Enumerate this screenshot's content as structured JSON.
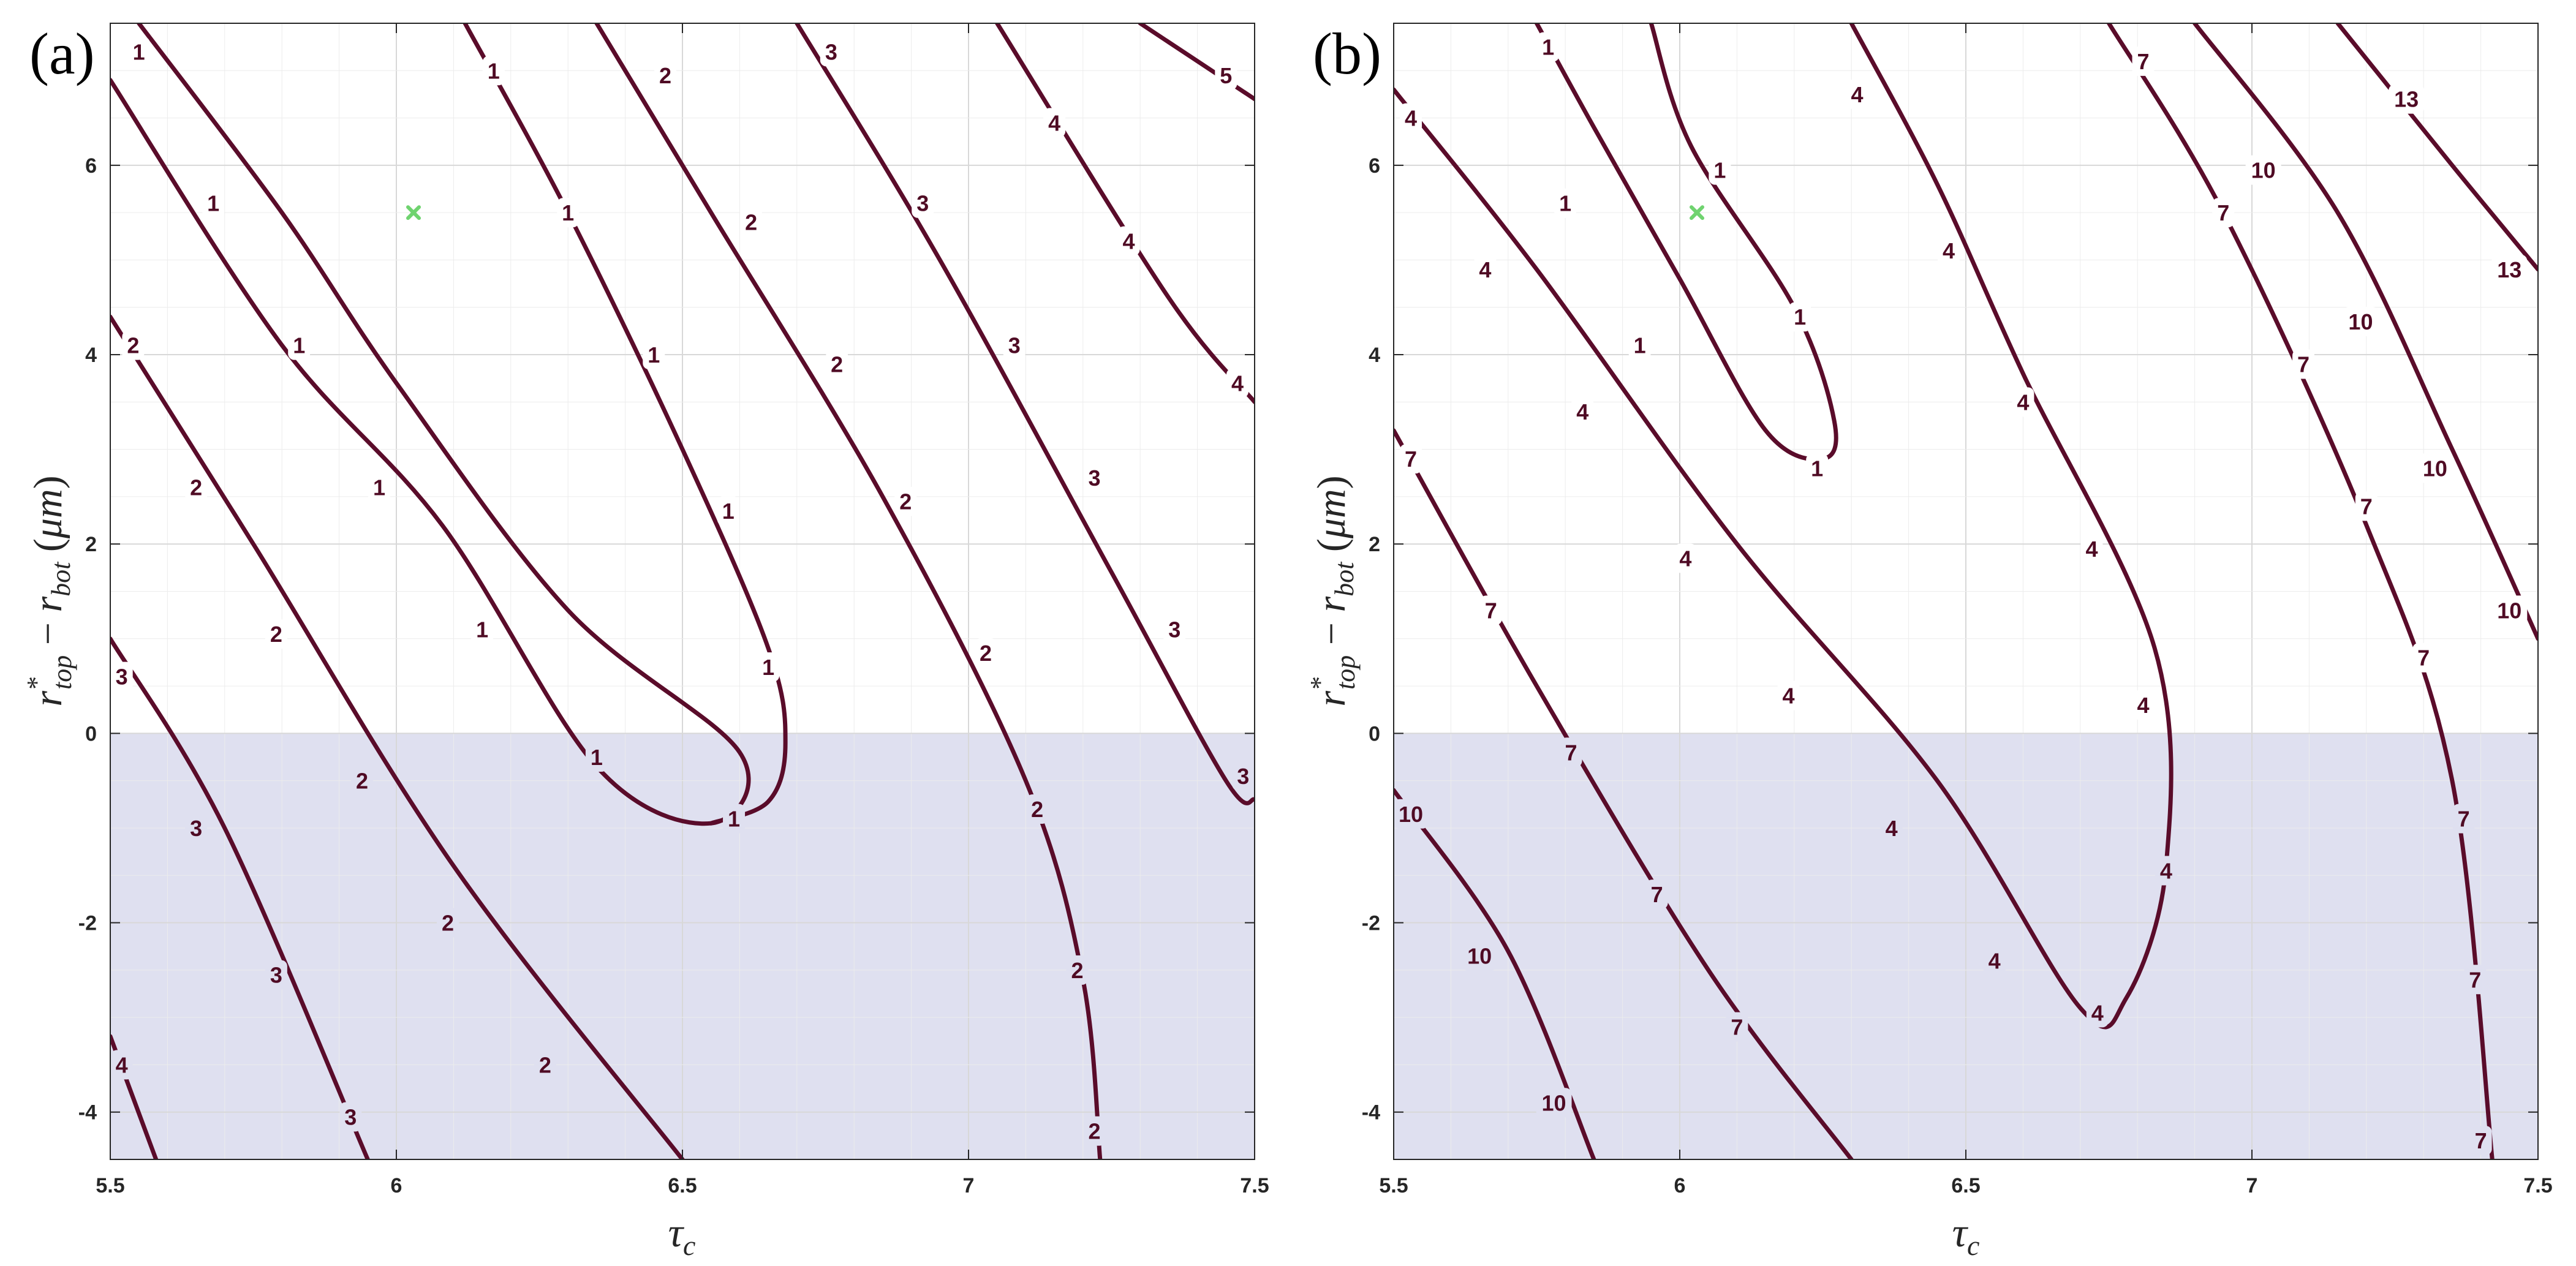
{
  "colors": {
    "contour": "#5a0c2a",
    "shaded_region": "#dfe0f0",
    "marker": "#6fd36f",
    "grid": "#ececec",
    "axis": "#262626"
  },
  "chart_data": [
    {
      "type": "contour",
      "panel_label": "(a)",
      "xlabel": "τ_c",
      "ylabel": "r*_top − r_bot (μm)",
      "xlim": [
        5.5,
        7.5
      ],
      "ylim": [
        -4.5,
        7.5
      ],
      "x_ticks": [
        5.5,
        6,
        6.5,
        7,
        7.5
      ],
      "x_tick_labels": [
        "5.5",
        "6",
        "6.5",
        "7",
        "7.5"
      ],
      "y_ticks": [
        -4,
        -2,
        0,
        2,
        4,
        6
      ],
      "y_tick_labels": [
        "-4",
        "-2",
        "0",
        "2",
        "4",
        "6"
      ],
      "grid": true,
      "shaded_region": {
        "y_from": -4.5,
        "y_to": 0
      },
      "marker": {
        "x": 6.03,
        "y": 5.5,
        "symbol": "x"
      },
      "contours": [
        {
          "level": 1,
          "points": [
            [
              5.55,
              7.5
            ],
            [
              5.8,
              5.5
            ],
            [
              6.0,
              3.7
            ],
            [
              6.3,
              1.3
            ],
            [
              6.6,
              -0.2
            ],
            [
              6.55,
              -0.95
            ],
            [
              6.35,
              -0.35
            ],
            [
              6.08,
              2.2
            ],
            [
              5.8,
              4.1
            ],
            [
              5.5,
              6.9
            ]
          ]
        },
        {
          "level": 1,
          "points": [
            [
              6.12,
              7.5
            ],
            [
              6.3,
              5.5
            ],
            [
              6.5,
              3.0
            ],
            [
              6.65,
              0.9
            ],
            [
              6.68,
              -0.1
            ],
            [
              6.65,
              -0.72
            ],
            [
              6.55,
              -0.95
            ]
          ]
        },
        {
          "level": 2,
          "points": [
            [
              5.5,
              4.4
            ],
            [
              5.75,
              2.0
            ],
            [
              6.1,
              -1.4
            ],
            [
              6.5,
              -4.5
            ]
          ]
        },
        {
          "level": 2,
          "points": [
            [
              6.35,
              7.5
            ],
            [
              6.55,
              5.5
            ],
            [
              6.85,
              2.5
            ],
            [
              7.1,
              -0.5
            ],
            [
              7.2,
              -2.6
            ],
            [
              7.23,
              -4.5
            ]
          ]
        },
        {
          "level": 3,
          "points": [
            [
              5.5,
              1.0
            ],
            [
              5.7,
              -1.0
            ],
            [
              5.95,
              -4.5
            ]
          ]
        },
        {
          "level": 3,
          "points": [
            [
              6.7,
              7.5
            ],
            [
              6.95,
              5.0
            ],
            [
              7.25,
              1.7
            ],
            [
              7.45,
              -0.5
            ],
            [
              7.5,
              -0.7
            ]
          ]
        },
        {
          "level": 4,
          "points": [
            [
              5.5,
              -3.2
            ],
            [
              5.58,
              -4.5
            ]
          ]
        },
        {
          "level": 4,
          "points": [
            [
              7.05,
              7.5
            ],
            [
              7.35,
              4.6
            ],
            [
              7.5,
              3.5
            ]
          ]
        },
        {
          "level": 5,
          "points": [
            [
              7.3,
              7.5
            ],
            [
              7.5,
              6.7
            ]
          ]
        }
      ],
      "contour_labels": [
        {
          "text": "1",
          "x": 5.55,
          "y": 7.2
        },
        {
          "text": "1",
          "x": 5.68,
          "y": 5.6
        },
        {
          "text": "1",
          "x": 5.83,
          "y": 4.1
        },
        {
          "text": "1",
          "x": 5.97,
          "y": 2.6
        },
        {
          "text": "1",
          "x": 6.15,
          "y": 1.1
        },
        {
          "text": "1",
          "x": 6.35,
          "y": -0.25
        },
        {
          "text": "1",
          "x": 6.17,
          "y": 7.0
        },
        {
          "text": "1",
          "x": 6.3,
          "y": 5.5
        },
        {
          "text": "1",
          "x": 6.45,
          "y": 4.0
        },
        {
          "text": "1",
          "x": 6.58,
          "y": 2.35
        },
        {
          "text": "1",
          "x": 6.65,
          "y": 0.7
        },
        {
          "text": "1",
          "x": 6.59,
          "y": -0.9
        },
        {
          "text": "2",
          "x": 5.54,
          "y": 4.1
        },
        {
          "text": "2",
          "x": 5.65,
          "y": 2.6
        },
        {
          "text": "2",
          "x": 5.79,
          "y": 1.05
        },
        {
          "text": "2",
          "x": 5.94,
          "y": -0.5
        },
        {
          "text": "2",
          "x": 6.09,
          "y": -2.0
        },
        {
          "text": "2",
          "x": 6.26,
          "y": -3.5
        },
        {
          "text": "2",
          "x": 6.47,
          "y": 6.95
        },
        {
          "text": "2",
          "x": 6.62,
          "y": 5.4
        },
        {
          "text": "2",
          "x": 6.77,
          "y": 3.9
        },
        {
          "text": "2",
          "x": 6.89,
          "y": 2.45
        },
        {
          "text": "2",
          "x": 7.03,
          "y": 0.85
        },
        {
          "text": "2",
          "x": 7.12,
          "y": -0.8
        },
        {
          "text": "2",
          "x": 7.19,
          "y": -2.5
        },
        {
          "text": "2",
          "x": 7.22,
          "y": -4.2
        },
        {
          "text": "3",
          "x": 5.52,
          "y": 0.6
        },
        {
          "text": "3",
          "x": 5.65,
          "y": -1.0
        },
        {
          "text": "3",
          "x": 5.79,
          "y": -2.55
        },
        {
          "text": "3",
          "x": 5.92,
          "y": -4.05
        },
        {
          "text": "3",
          "x": 6.76,
          "y": 7.2
        },
        {
          "text": "3",
          "x": 6.92,
          "y": 5.6
        },
        {
          "text": "3",
          "x": 7.08,
          "y": 4.1
        },
        {
          "text": "3",
          "x": 7.22,
          "y": 2.7
        },
        {
          "text": "3",
          "x": 7.36,
          "y": 1.1
        },
        {
          "text": "3",
          "x": 7.48,
          "y": -0.45
        },
        {
          "text": "4",
          "x": 5.52,
          "y": -3.5
        },
        {
          "text": "4",
          "x": 7.15,
          "y": 6.45
        },
        {
          "text": "4",
          "x": 7.28,
          "y": 5.2
        },
        {
          "text": "4",
          "x": 7.47,
          "y": 3.7
        },
        {
          "text": "5",
          "x": 7.45,
          "y": 6.95
        }
      ]
    },
    {
      "type": "contour",
      "panel_label": "(b)",
      "xlabel": "τ_c",
      "ylabel": "r*_top − r_bot (μm)",
      "xlim": [
        5.5,
        7.5
      ],
      "ylim": [
        -4.5,
        7.5
      ],
      "x_ticks": [
        5.5,
        6,
        6.5,
        7,
        7.5
      ],
      "x_tick_labels": [
        "5.5",
        "6",
        "6.5",
        "7",
        "7.5"
      ],
      "y_ticks": [
        -4,
        -2,
        0,
        2,
        4,
        6
      ],
      "y_tick_labels": [
        "-4",
        "-2",
        "0",
        "2",
        "4",
        "6"
      ],
      "grid": true,
      "shaded_region": {
        "y_from": -4.5,
        "y_to": 0
      },
      "marker": {
        "x": 6.03,
        "y": 5.5,
        "symbol": "x"
      },
      "contours": [
        {
          "level": 1,
          "points": [
            [
              5.75,
              7.5
            ],
            [
              5.85,
              6.4
            ],
            [
              6.0,
              4.8
            ],
            [
              6.15,
              3.2
            ],
            [
              6.25,
              2.9
            ],
            [
              6.27,
              3.3
            ],
            [
              6.2,
              4.5
            ],
            [
              6.02,
              6.2
            ],
            [
              5.95,
              7.5
            ]
          ]
        },
        {
          "level": 4,
          "points": [
            [
              5.5,
              6.8
            ],
            [
              5.75,
              4.9
            ],
            [
              6.1,
              2.0
            ],
            [
              6.45,
              -0.5
            ],
            [
              6.7,
              -2.9
            ],
            [
              6.78,
              -2.8
            ],
            [
              6.85,
              -1.4
            ],
            [
              6.83,
              0.9
            ],
            [
              6.6,
              3.8
            ],
            [
              6.45,
              5.8
            ],
            [
              6.3,
              7.5
            ]
          ]
        },
        {
          "level": 7,
          "points": [
            [
              5.5,
              3.2
            ],
            [
              5.75,
              0.5
            ],
            [
              6.05,
              -2.5
            ],
            [
              6.3,
              -4.5
            ]
          ]
        },
        {
          "level": 7,
          "points": [
            [
              6.75,
              7.5
            ],
            [
              6.95,
              5.5
            ],
            [
              7.2,
              2.2
            ],
            [
              7.35,
              -0.5
            ],
            [
              7.42,
              -4.5
            ]
          ]
        },
        {
          "level": 10,
          "points": [
            [
              5.5,
              -0.6
            ],
            [
              5.7,
              -2.3
            ],
            [
              5.85,
              -4.5
            ]
          ]
        },
        {
          "level": 10,
          "points": [
            [
              6.9,
              7.5
            ],
            [
              7.15,
              5.5
            ],
            [
              7.35,
              3.0
            ],
            [
              7.5,
              1.0
            ]
          ]
        },
        {
          "level": 13,
          "points": [
            [
              7.15,
              7.5
            ],
            [
              7.35,
              6.0
            ],
            [
              7.5,
              4.9
            ]
          ]
        }
      ],
      "contour_labels": [
        {
          "text": "1",
          "x": 5.77,
          "y": 7.25
        },
        {
          "text": "1",
          "x": 5.8,
          "y": 5.6
        },
        {
          "text": "1",
          "x": 5.93,
          "y": 4.1
        },
        {
          "text": "1",
          "x": 6.07,
          "y": 5.95
        },
        {
          "text": "1",
          "x": 6.21,
          "y": 4.4
        },
        {
          "text": "1",
          "x": 6.24,
          "y": 2.8
        },
        {
          "text": "4",
          "x": 5.53,
          "y": 6.5
        },
        {
          "text": "4",
          "x": 5.66,
          "y": 4.9
        },
        {
          "text": "4",
          "x": 5.83,
          "y": 3.4
        },
        {
          "text": "4",
          "x": 6.01,
          "y": 1.85
        },
        {
          "text": "4",
          "x": 6.19,
          "y": 0.4
        },
        {
          "text": "4",
          "x": 6.37,
          "y": -1.0
        },
        {
          "text": "4",
          "x": 6.55,
          "y": -2.4
        },
        {
          "text": "4",
          "x": 6.73,
          "y": -2.95
        },
        {
          "text": "4",
          "x": 6.85,
          "y": -1.45
        },
        {
          "text": "4",
          "x": 6.81,
          "y": 0.3
        },
        {
          "text": "4",
          "x": 6.72,
          "y": 1.95
        },
        {
          "text": "4",
          "x": 6.6,
          "y": 3.5
        },
        {
          "text": "4",
          "x": 6.47,
          "y": 5.1
        },
        {
          "text": "4",
          "x": 6.31,
          "y": 6.75
        },
        {
          "text": "7",
          "x": 5.53,
          "y": 2.9
        },
        {
          "text": "7",
          "x": 5.67,
          "y": 1.3
        },
        {
          "text": "7",
          "x": 5.81,
          "y": -0.2
        },
        {
          "text": "7",
          "x": 5.96,
          "y": -1.7
        },
        {
          "text": "7",
          "x": 6.1,
          "y": -3.1
        },
        {
          "text": "7",
          "x": 6.81,
          "y": 7.1
        },
        {
          "text": "7",
          "x": 6.95,
          "y": 5.5
        },
        {
          "text": "7",
          "x": 7.09,
          "y": 3.9
        },
        {
          "text": "7",
          "x": 7.2,
          "y": 2.4
        },
        {
          "text": "7",
          "x": 7.3,
          "y": 0.8
        },
        {
          "text": "7",
          "x": 7.37,
          "y": -0.9
        },
        {
          "text": "7",
          "x": 7.39,
          "y": -2.6
        },
        {
          "text": "7",
          "x": 7.4,
          "y": -4.3
        },
        {
          "text": "10",
          "x": 5.53,
          "y": -0.85
        },
        {
          "text": "10",
          "x": 5.65,
          "y": -2.35
        },
        {
          "text": "10",
          "x": 5.78,
          "y": -3.9
        },
        {
          "text": "10",
          "x": 7.02,
          "y": 5.95
        },
        {
          "text": "10",
          "x": 7.19,
          "y": 4.35
        },
        {
          "text": "10",
          "x": 7.32,
          "y": 2.8
        },
        {
          "text": "10",
          "x": 7.45,
          "y": 1.3
        },
        {
          "text": "13",
          "x": 7.27,
          "y": 6.7
        },
        {
          "text": "13",
          "x": 7.45,
          "y": 4.9
        }
      ]
    }
  ]
}
